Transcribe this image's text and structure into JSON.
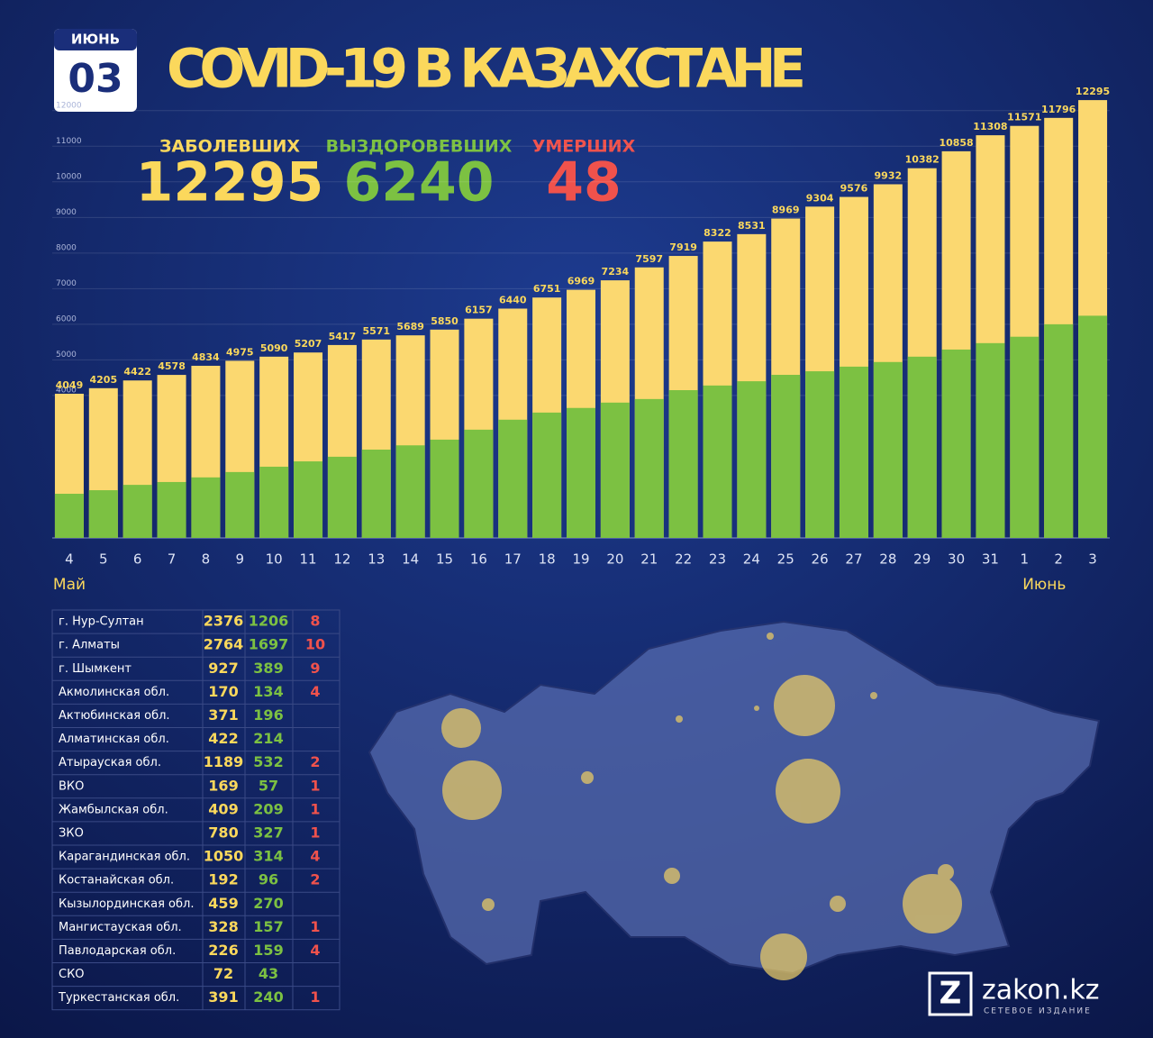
{
  "chart_data": {
    "type": "bar",
    "title": "COVID-19 В КАЗАХСТАНЕ",
    "date": {
      "month": "ИЮНЬ",
      "day": "03"
    },
    "stats": [
      {
        "label": "ЗАБОЛЕВШИХ",
        "value": "12295",
        "color": "#fbd85c"
      },
      {
        "label": "ВЫЗДОРОВЕВШИХ",
        "value": "6240",
        "color": "#7cc142"
      },
      {
        "label": "УМЕРШИХ",
        "value": "48",
        "color": "#f0524c"
      }
    ],
    "categories": [
      "4",
      "5",
      "6",
      "7",
      "8",
      "9",
      "10",
      "11",
      "12",
      "13",
      "14",
      "15",
      "16",
      "17",
      "18",
      "19",
      "20",
      "21",
      "22",
      "23",
      "24",
      "25",
      "26",
      "27",
      "28",
      "29",
      "30",
      "31",
      "1",
      "2",
      "3"
    ],
    "month_labels": [
      {
        "index": 0,
        "label": "Май"
      },
      {
        "index": 29,
        "label": "Июнь"
      }
    ],
    "values": [
      4049,
      4205,
      4422,
      4578,
      4834,
      4975,
      5090,
      5207,
      5417,
      5571,
      5689,
      5850,
      6157,
      6440,
      6751,
      6969,
      7234,
      7597,
      7919,
      8322,
      8531,
      8969,
      9304,
      9576,
      9932,
      10382,
      10858,
      11308,
      11571,
      11796,
      12295
    ],
    "color": "#fbd870",
    "recovered_values": [
      1240,
      1340,
      1490,
      1570,
      1700,
      1850,
      2000,
      2150,
      2280,
      2480,
      2600,
      2760,
      3040,
      3320,
      3520,
      3650,
      3800,
      3900,
      4150,
      4280,
      4400,
      4580,
      4680,
      4810,
      4940,
      5090,
      5290,
      5470,
      5650,
      6000,
      6240
    ],
    "recovered_color": "#7cc142",
    "ylim": [
      0,
      12500
    ],
    "yticks": [
      4000,
      5000,
      6000,
      7000,
      8000,
      9000,
      10000,
      11000,
      12000
    ],
    "grid": true
  },
  "table": {
    "rows": [
      [
        "г. Нур-Султан",
        2376,
        1206,
        8
      ],
      [
        "г. Алматы",
        2764,
        1697,
        10
      ],
      [
        "г. Шымкент",
        927,
        389,
        9
      ],
      [
        "Акмолинская обл.",
        170,
        134,
        4
      ],
      [
        "Актюбинская обл.",
        371,
        196,
        null
      ],
      [
        "Алматинская обл.",
        422,
        214,
        null
      ],
      [
        "Атырауская обл.",
        1189,
        532,
        2
      ],
      [
        "ВКО",
        169,
        57,
        1
      ],
      [
        "Жамбылская обл.",
        409,
        209,
        1
      ],
      [
        "ЗКО",
        780,
        327,
        1
      ],
      [
        "Карагандинская обл.",
        1050,
        314,
        4
      ],
      [
        "Костанайская обл.",
        192,
        96,
        2
      ],
      [
        "Кызылординская обл.",
        459,
        270,
        null
      ],
      [
        "Мангистауская обл.",
        328,
        157,
        1
      ],
      [
        "Павлодарская обл.",
        226,
        159,
        4
      ],
      [
        "СКО",
        72,
        43,
        null
      ],
      [
        "Туркестанская обл.",
        391,
        240,
        1
      ]
    ]
  },
  "logo": {
    "name": "zakon.kz",
    "tagline": "СЕТЕВОЕ ИЗДАНИЕ"
  }
}
